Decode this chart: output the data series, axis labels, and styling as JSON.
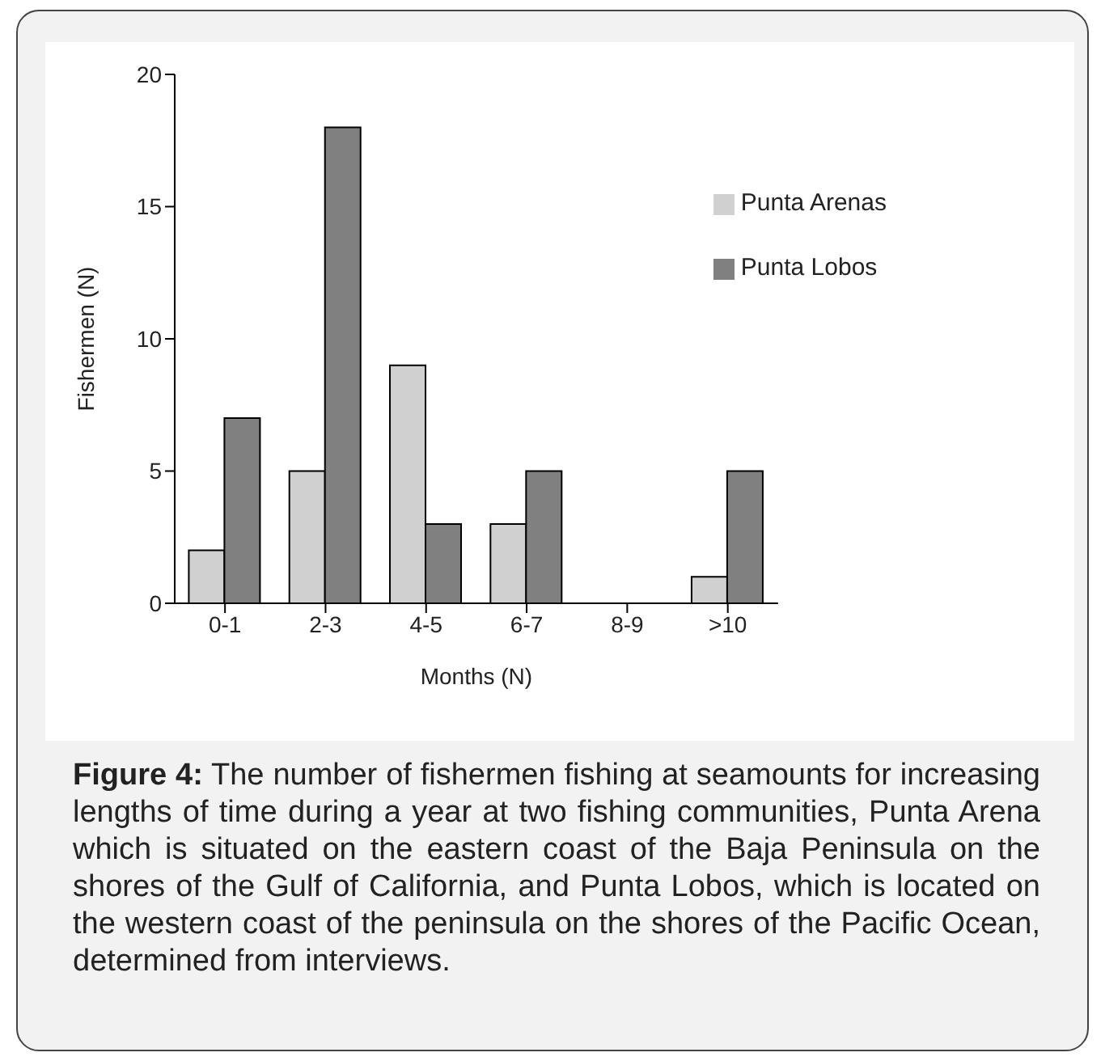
{
  "chart_data": {
    "type": "bar",
    "categories": [
      "0-1",
      "2-3",
      "4-5",
      "6-7",
      "8-9",
      ">10"
    ],
    "series": [
      {
        "name": "Punta Arenas",
        "color": "#d0d0d0",
        "values": [
          2,
          5,
          9,
          3,
          0,
          1
        ]
      },
      {
        "name": "Punta Lobos",
        "color": "#808080",
        "values": [
          7,
          18,
          3,
          5,
          0,
          5
        ]
      }
    ],
    "xlabel": "Months (N)",
    "ylabel": "Fishermen (N)",
    "ylim": [
      0,
      20
    ],
    "yticks": [
      0,
      5,
      10,
      15,
      20
    ],
    "grid": false,
    "legend": "top right",
    "annotations": [
      "Figure 4: The number of fishermen fishing at seamounts for increasing lengths of time during a year at two fishing communities, Punta Arena which is situated on the eastern coast of the Baja Peninsula on the shores of the Gulf of California, and Punta Lobos, which is located on the western coast of the peninsula on the shores of the Pacific Ocean, determined from interviews."
    ]
  }
}
